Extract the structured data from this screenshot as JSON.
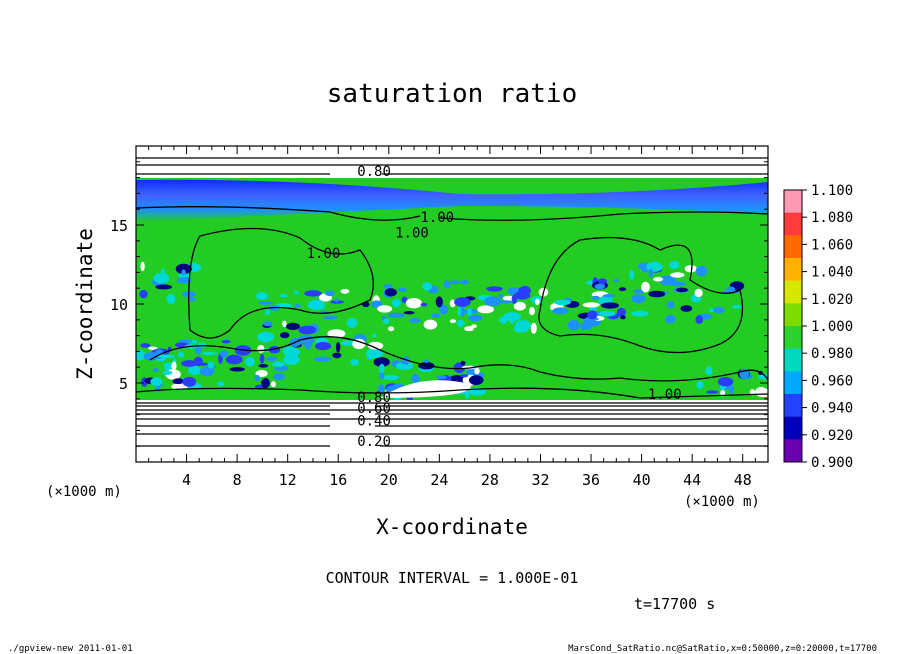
{
  "chart_data": {
    "type": "heatmap",
    "title": "saturation ratio",
    "xlabel": "X-coordinate",
    "ylabel": "Z-coordinate",
    "x_unit_left": "(×1000 m)",
    "x_unit_right": "(×1000 m)",
    "xlim": [
      0,
      50
    ],
    "ylim": [
      0,
      20
    ],
    "x_ticks": [
      4,
      8,
      12,
      16,
      20,
      24,
      28,
      32,
      36,
      40,
      44,
      48
    ],
    "y_ticks": [
      5,
      10,
      15
    ],
    "contour_interval_text": "CONTOUR INTERVAL = 1.000E-01",
    "time_text": "t=17700 s",
    "contour_labels": [
      {
        "text": "0.80",
        "x": 17.5,
        "z": 18.1
      },
      {
        "text": "1.00",
        "x": 22.5,
        "z": 15.2
      },
      {
        "text": "1.00",
        "x": 20.5,
        "z": 14.2
      },
      {
        "text": "1.00",
        "x": 13.5,
        "z": 12.9
      },
      {
        "text": "1.00",
        "x": 40.5,
        "z": 4.0
      },
      {
        "text": "0.80",
        "x": 17.5,
        "z": 3.8
      },
      {
        "text": "0.60",
        "x": 17.5,
        "z": 3.1
      },
      {
        "text": "0.40",
        "x": 17.5,
        "z": 2.3
      },
      {
        "text": "0.20",
        "x": 17.5,
        "z": 1.0
      }
    ],
    "colorbar": {
      "levels": [
        "1.100",
        "1.080",
        "1.060",
        "1.040",
        "1.020",
        "1.000",
        "0.980",
        "0.960",
        "0.940",
        "0.920",
        "0.900"
      ],
      "colors": [
        "#ff9ab4",
        "#ff3b3b",
        "#ff6a00",
        "#ffb000",
        "#d6e800",
        "#7fdc00",
        "#2ed22e",
        "#00d9c0",
        "#00a8ff",
        "#2244ff",
        "#0000b8",
        "#6a00b0"
      ]
    },
    "field_colors": {
      "saturated": "#22cc22",
      "low_band": "#2a3cff",
      "mid_blue": "#1e90ff",
      "cyan": "#00d8d8",
      "dark": "#000080",
      "white": "#ffffff"
    }
  },
  "footer": {
    "left": "./gpview-new  2011-01-01",
    "right": "MarsCond_SatRatio.nc@SatRatio,x=0:50000,z=0:20000,t=17700"
  }
}
